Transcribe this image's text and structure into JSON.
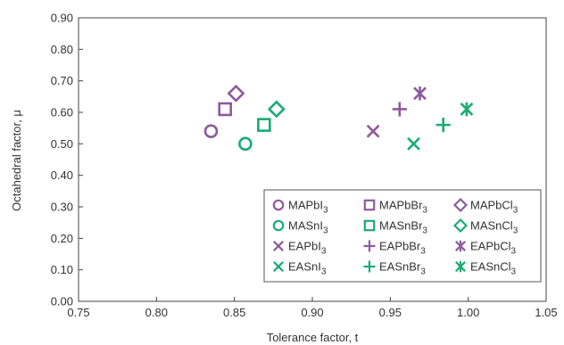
{
  "chart_data": {
    "type": "scatter",
    "xlabel": "Tolerance factor, t",
    "ylabel": "Octahedral factor, μ",
    "xlim": [
      0.75,
      1.05
    ],
    "ylim": [
      0.0,
      0.9
    ],
    "x_ticks": [
      "0.75",
      "0.80",
      "0.85",
      "0.90",
      "0.95",
      "1.00",
      "1.05"
    ],
    "y_ticks": [
      "0.00",
      "0.10",
      "0.20",
      "0.30",
      "0.40",
      "0.50",
      "0.60",
      "0.70",
      "0.80",
      "0.90"
    ],
    "grid": false,
    "legend_position": "bottom-right",
    "colors": {
      "purple": "#8e5a9c",
      "green": "#1aab74"
    },
    "series": [
      {
        "name": "MAPbI",
        "sub": "3",
        "marker": "circle",
        "color": "purple",
        "x": 0.835,
        "y": 0.54
      },
      {
        "name": "MAPbBr",
        "sub": "3",
        "marker": "square",
        "color": "purple",
        "x": 0.844,
        "y": 0.61
      },
      {
        "name": "MAPbCl",
        "sub": "3",
        "marker": "diamond",
        "color": "purple",
        "x": 0.851,
        "y": 0.66
      },
      {
        "name": "MASnI",
        "sub": "3",
        "marker": "circle",
        "color": "green",
        "x": 0.857,
        "y": 0.5
      },
      {
        "name": "MASnBr",
        "sub": "3",
        "marker": "square",
        "color": "green",
        "x": 0.869,
        "y": 0.56
      },
      {
        "name": "MASnCl",
        "sub": "3",
        "marker": "diamond",
        "color": "green",
        "x": 0.877,
        "y": 0.61
      },
      {
        "name": "EAPbI",
        "sub": "3",
        "marker": "x",
        "color": "purple",
        "x": 0.939,
        "y": 0.54
      },
      {
        "name": "EAPbBr",
        "sub": "3",
        "marker": "plus",
        "color": "purple",
        "x": 0.956,
        "y": 0.61
      },
      {
        "name": "EAPbCl",
        "sub": "3",
        "marker": "asterisk",
        "color": "purple",
        "x": 0.969,
        "y": 0.66
      },
      {
        "name": "EASnI",
        "sub": "3",
        "marker": "x",
        "color": "green",
        "x": 0.965,
        "y": 0.5
      },
      {
        "name": "EASnBr",
        "sub": "3",
        "marker": "plus",
        "color": "green",
        "x": 0.984,
        "y": 0.56
      },
      {
        "name": "EASnCl",
        "sub": "3",
        "marker": "asterisk",
        "color": "green",
        "x": 0.999,
        "y": 0.61
      }
    ]
  }
}
